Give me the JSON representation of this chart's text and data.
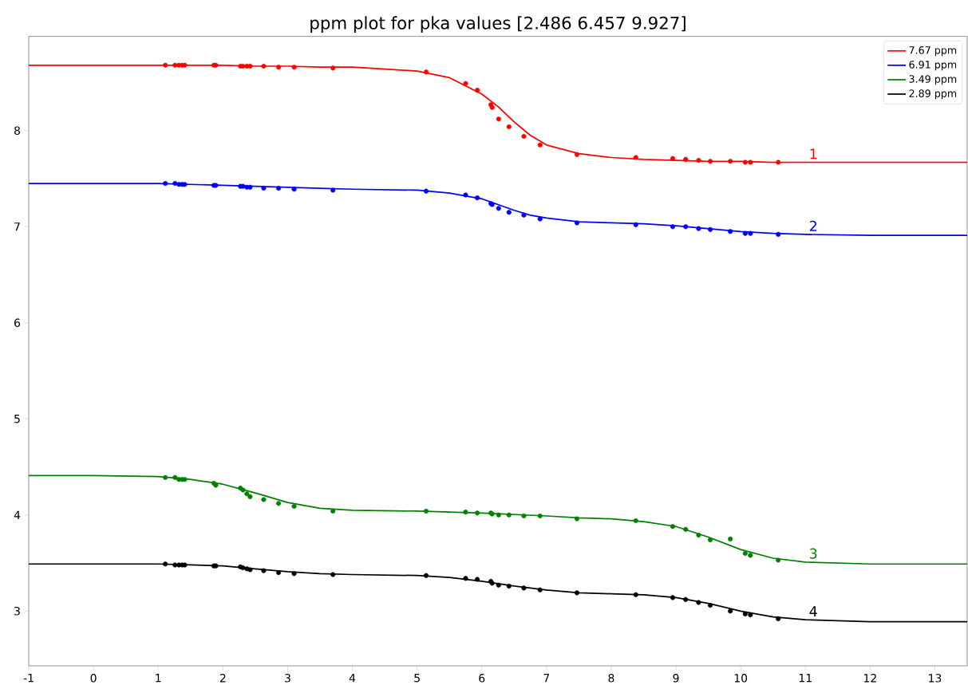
{
  "chart_data": {
    "type": "line",
    "title": "ppm plot for pka values [2.486 6.457 9.927]",
    "xlim": [
      -1,
      13.5
    ],
    "ylim": [
      2.43,
      8.98
    ],
    "xticks": [
      -1,
      0,
      1,
      2,
      3,
      4,
      5,
      6,
      7,
      8,
      9,
      10,
      11,
      12,
      13
    ],
    "yticks": [
      3,
      4,
      5,
      6,
      7,
      8
    ],
    "legend": "top right",
    "marker": "none",
    "line_style": "solid",
    "series": [
      {
        "name": "7.67 ppm",
        "color": "#ff0000",
        "x": [
          -1,
          1,
          2,
          2.5,
          3,
          3.5,
          4,
          5,
          5.5,
          6,
          6.25,
          6.5,
          6.75,
          7,
          7.5,
          8,
          8.5,
          9,
          9.5,
          10,
          10.5,
          11,
          12,
          13.5
        ],
        "values": [
          8.68,
          8.68,
          8.68,
          8.67,
          8.67,
          8.66,
          8.66,
          8.62,
          8.55,
          8.38,
          8.25,
          8.09,
          7.95,
          7.85,
          7.76,
          7.72,
          7.7,
          7.69,
          7.68,
          7.68,
          7.67,
          7.67,
          7.67,
          7.67
        ]
      },
      {
        "name": "6.91 ppm",
        "color": "#0000ff",
        "x": [
          -1,
          1,
          2,
          2.5,
          3,
          3.5,
          4,
          5,
          5.5,
          6,
          6.25,
          6.5,
          6.75,
          7,
          7.5,
          8,
          8.5,
          9,
          9.5,
          10,
          10.5,
          11,
          12,
          13.5
        ],
        "values": [
          7.45,
          7.45,
          7.43,
          7.42,
          7.41,
          7.4,
          7.39,
          7.38,
          7.35,
          7.29,
          7.23,
          7.17,
          7.12,
          7.09,
          7.05,
          7.04,
          7.03,
          7.01,
          6.98,
          6.95,
          6.93,
          6.92,
          6.91,
          6.91
        ]
      },
      {
        "name": "3.49 ppm",
        "color": "#008000",
        "x": [
          -1,
          0,
          1,
          1.5,
          2,
          2.5,
          3,
          3.5,
          4,
          5,
          6,
          7,
          7.5,
          8,
          8.5,
          9,
          9.5,
          10,
          10.5,
          11,
          12,
          13.5
        ],
        "values": [
          4.41,
          4.41,
          4.4,
          4.37,
          4.32,
          4.23,
          4.13,
          4.07,
          4.05,
          4.04,
          4.02,
          3.99,
          3.97,
          3.96,
          3.93,
          3.88,
          3.77,
          3.64,
          3.55,
          3.51,
          3.49,
          3.49
        ]
      },
      {
        "name": "2.89 ppm",
        "color": "#000000",
        "x": [
          -1,
          1,
          1.5,
          2,
          2.5,
          3,
          3.5,
          4,
          5,
          5.5,
          6,
          6.5,
          7,
          7.5,
          8,
          8.5,
          9,
          9.5,
          10,
          10.5,
          11,
          12,
          13.5
        ],
        "values": [
          3.49,
          3.49,
          3.48,
          3.47,
          3.44,
          3.41,
          3.39,
          3.38,
          3.37,
          3.35,
          3.31,
          3.26,
          3.22,
          3.19,
          3.18,
          3.17,
          3.14,
          3.08,
          3.0,
          2.94,
          2.91,
          2.89,
          2.89
        ]
      },
      {
        "type": "scatter",
        "marker": "circle",
        "color": "#ff0000",
        "x": [
          1.11,
          1.26,
          1.32,
          1.37,
          1.41,
          1.86,
          1.89,
          2.27,
          2.31,
          2.37,
          2.42,
          2.63,
          2.86,
          3.1,
          3.7,
          5.14,
          5.75,
          5.93,
          6.14,
          6.16,
          6.26,
          6.42,
          6.65,
          6.9,
          7.47,
          8.38,
          8.95,
          9.15,
          9.35,
          9.53,
          9.84,
          10.07,
          10.15,
          10.58
        ],
        "values": [
          8.68,
          8.68,
          8.68,
          8.68,
          8.68,
          8.68,
          8.68,
          8.67,
          8.67,
          8.67,
          8.67,
          8.67,
          8.66,
          8.66,
          8.65,
          8.61,
          8.49,
          8.42,
          8.27,
          8.24,
          8.12,
          8.04,
          7.94,
          7.85,
          7.75,
          7.72,
          7.71,
          7.7,
          7.69,
          7.68,
          7.68,
          7.67,
          7.67,
          7.67
        ]
      },
      {
        "type": "scatter",
        "marker": "circle",
        "color": "#0000ff",
        "x": [
          1.11,
          1.26,
          1.32,
          1.37,
          1.41,
          1.86,
          1.89,
          2.27,
          2.31,
          2.37,
          2.42,
          2.63,
          2.86,
          3.1,
          3.7,
          5.14,
          5.75,
          5.93,
          6.14,
          6.16,
          6.26,
          6.42,
          6.65,
          6.9,
          7.47,
          8.38,
          8.95,
          9.15,
          9.35,
          9.53,
          9.84,
          10.07,
          10.15,
          10.58
        ],
        "values": [
          7.45,
          7.45,
          7.44,
          7.44,
          7.44,
          7.43,
          7.43,
          7.42,
          7.42,
          7.41,
          7.41,
          7.4,
          7.4,
          7.39,
          7.38,
          7.37,
          7.33,
          7.3,
          7.24,
          7.23,
          7.19,
          7.15,
          7.12,
          7.08,
          7.04,
          7.02,
          7.0,
          7.0,
          6.98,
          6.97,
          6.95,
          6.93,
          6.93,
          6.92
        ]
      },
      {
        "type": "scatter",
        "marker": "circle",
        "color": "#008000",
        "x": [
          1.11,
          1.26,
          1.32,
          1.37,
          1.41,
          1.86,
          1.89,
          2.27,
          2.31,
          2.37,
          2.42,
          2.63,
          2.86,
          3.1,
          3.7,
          5.14,
          5.75,
          5.93,
          6.14,
          6.16,
          6.26,
          6.42,
          6.65,
          6.9,
          7.47,
          8.38,
          8.95,
          9.15,
          9.35,
          9.53,
          9.84,
          10.07,
          10.15,
          10.58
        ],
        "values": [
          4.39,
          4.39,
          4.37,
          4.37,
          4.37,
          4.33,
          4.31,
          4.28,
          4.26,
          4.22,
          4.19,
          4.16,
          4.12,
          4.09,
          4.04,
          4.04,
          4.03,
          4.02,
          4.02,
          4.01,
          4.0,
          4.0,
          3.99,
          3.99,
          3.96,
          3.94,
          3.88,
          3.85,
          3.79,
          3.74,
          3.75,
          3.6,
          3.58,
          3.53
        ]
      },
      {
        "type": "scatter",
        "marker": "circle",
        "color": "#000000",
        "x": [
          1.11,
          1.26,
          1.32,
          1.37,
          1.41,
          1.86,
          1.89,
          2.27,
          2.31,
          2.37,
          2.42,
          2.63,
          2.86,
          3.1,
          3.7,
          5.14,
          5.75,
          5.93,
          6.14,
          6.16,
          6.26,
          6.42,
          6.65,
          6.9,
          7.47,
          8.38,
          8.95,
          9.15,
          9.35,
          9.53,
          9.84,
          10.07,
          10.15,
          10.58
        ],
        "values": [
          3.49,
          3.48,
          3.48,
          3.48,
          3.48,
          3.47,
          3.47,
          3.46,
          3.45,
          3.44,
          3.43,
          3.42,
          3.4,
          3.39,
          3.38,
          3.37,
          3.34,
          3.33,
          3.31,
          3.29,
          3.27,
          3.26,
          3.24,
          3.22,
          3.19,
          3.17,
          3.14,
          3.12,
          3.09,
          3.06,
          3.0,
          2.97,
          2.96,
          2.92
        ]
      }
    ],
    "annotations": [
      "1",
      "2",
      "3",
      "4"
    ]
  }
}
